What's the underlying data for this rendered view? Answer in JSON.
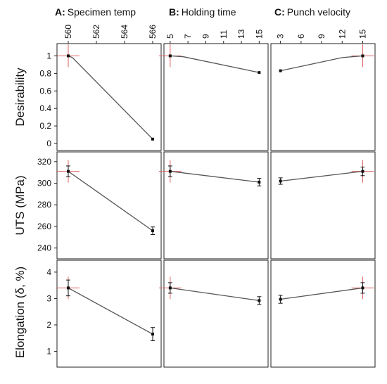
{
  "figure": {
    "columns": [
      {
        "letter": "A:",
        "title": "Specimen temp",
        "ticks": [
          560,
          562,
          564,
          566
        ],
        "xlim": [
          559.2,
          566.6
        ]
      },
      {
        "letter": "B:",
        "title": "Holding time",
        "ticks": [
          5,
          7,
          9,
          11,
          13,
          15
        ],
        "xlim": [
          4.3,
          16.0
        ]
      },
      {
        "letter": "C:",
        "title": "Punch velocity",
        "ticks": [
          3,
          6,
          9,
          12,
          15
        ],
        "xlim": [
          1.6,
          16.8
        ]
      }
    ],
    "rows": [
      {
        "title": "Desirability",
        "ticks": [
          "1",
          "0.8",
          "0.6",
          "0.4",
          "0.2",
          "0"
        ],
        "tick_values": [
          1,
          0.8,
          0.6,
          0.4,
          0.2,
          0
        ],
        "ylim": [
          -0.08,
          1.14
        ]
      },
      {
        "title": "UTS (MPa)",
        "ticks": [
          "320",
          "300",
          "280",
          "260",
          "240"
        ],
        "tick_values": [
          320,
          300,
          280,
          260,
          240
        ],
        "ylim": [
          230,
          329
        ]
      },
      {
        "title": "Elongation (δ, %)",
        "ticks": [
          "4",
          "3",
          "2",
          "1"
        ],
        "tick_values": [
          4,
          3,
          2,
          1
        ],
        "ylim": [
          0.4,
          4.45
        ]
      }
    ],
    "colors": {
      "line": "#555555",
      "point": "#111111",
      "crosshair": "#e06060",
      "frame": "#222222"
    }
  },
  "chart_data": {
    "type": "line",
    "panels": [
      {
        "row": 0,
        "col": 0,
        "x": [
          560,
          566
        ],
        "y": [
          1.0,
          0.05
        ],
        "yerr": [
          0,
          0
        ],
        "curve": [
          [
            560,
            1.0
          ],
          [
            560.3,
            0.98
          ],
          [
            566,
            0.05
          ]
        ],
        "crosshair": [
          560,
          1.0
        ]
      },
      {
        "row": 0,
        "col": 1,
        "x": [
          5,
          15
        ],
        "y": [
          1.0,
          0.81
        ],
        "yerr": [
          0,
          0
        ],
        "curve": [
          [
            5,
            1.0
          ],
          [
            6.5,
            0.99
          ],
          [
            15,
            0.81
          ]
        ],
        "crosshair": [
          5,
          1.0
        ]
      },
      {
        "row": 0,
        "col": 2,
        "x": [
          3,
          15
        ],
        "y": [
          0.83,
          1.0
        ],
        "yerr": [
          0,
          0
        ],
        "curve": [
          [
            3,
            0.83
          ],
          [
            12,
            0.98
          ],
          [
            15,
            1.0
          ]
        ],
        "crosshair": [
          15,
          1.0
        ]
      },
      {
        "row": 1,
        "col": 0,
        "x": [
          560,
          566
        ],
        "y": [
          311,
          256
        ],
        "yerr": [
          5,
          3.5
        ],
        "curve": [
          [
            560,
            311
          ],
          [
            566,
            256
          ]
        ],
        "crosshair": [
          560,
          311
        ]
      },
      {
        "row": 1,
        "col": 1,
        "x": [
          5,
          15
        ],
        "y": [
          311,
          301
        ],
        "yerr": [
          5,
          3.5
        ],
        "curve": [
          [
            5,
            311
          ],
          [
            15,
            301
          ]
        ],
        "crosshair": [
          5,
          311
        ]
      },
      {
        "row": 1,
        "col": 2,
        "x": [
          3,
          15
        ],
        "y": [
          302,
          311
        ],
        "yerr": [
          3,
          4
        ],
        "curve": [
          [
            3,
            302
          ],
          [
            15,
            311
          ]
        ],
        "crosshair": [
          15,
          311
        ]
      },
      {
        "row": 2,
        "col": 0,
        "x": [
          560,
          566
        ],
        "y": [
          3.4,
          1.65
        ],
        "yerr": [
          0.3,
          0.25
        ],
        "curve": [
          [
            560,
            3.4
          ],
          [
            566,
            1.65
          ]
        ],
        "crosshair": [
          560,
          3.4
        ]
      },
      {
        "row": 2,
        "col": 1,
        "x": [
          5,
          15
        ],
        "y": [
          3.4,
          2.92
        ],
        "yerr": [
          0.2,
          0.15
        ],
        "curve": [
          [
            5,
            3.4
          ],
          [
            15,
            2.92
          ]
        ],
        "crosshair": [
          5,
          3.4
        ]
      },
      {
        "row": 2,
        "col": 2,
        "x": [
          3,
          15
        ],
        "y": [
          2.97,
          3.4
        ],
        "yerr": [
          0.15,
          0.2
        ],
        "curve": [
          [
            3,
            2.97
          ],
          [
            15,
            3.4
          ]
        ],
        "crosshair": [
          15,
          3.4
        ]
      }
    ]
  }
}
